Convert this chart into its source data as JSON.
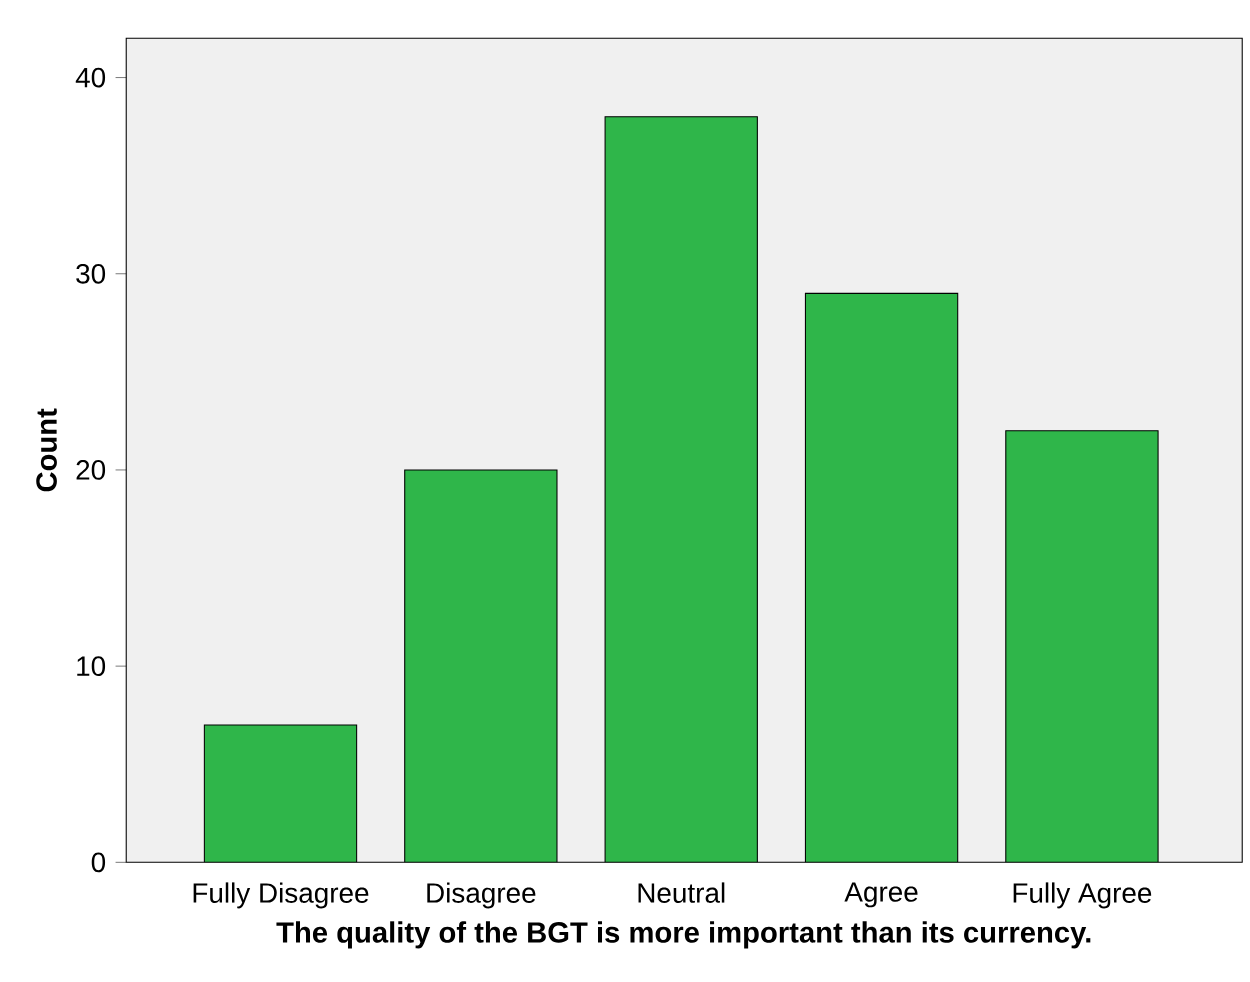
{
  "chart_data": {
    "type": "bar",
    "xlabel": "**The quality of the BGT is more important than its currency.**",
    "ylabel": "**Count**",
    "categories": [
      "Fully Disagree",
      "Disagree",
      "Neutral",
      "Agree",
      "Fully Agree"
    ],
    "values": [
      7,
      20,
      38,
      29,
      22
    ],
    "color": "#2fb64a",
    "ylim": [
      0,
      42
    ],
    "yticks": [
      0,
      10,
      20,
      30,
      40
    ],
    "grid": false
  }
}
